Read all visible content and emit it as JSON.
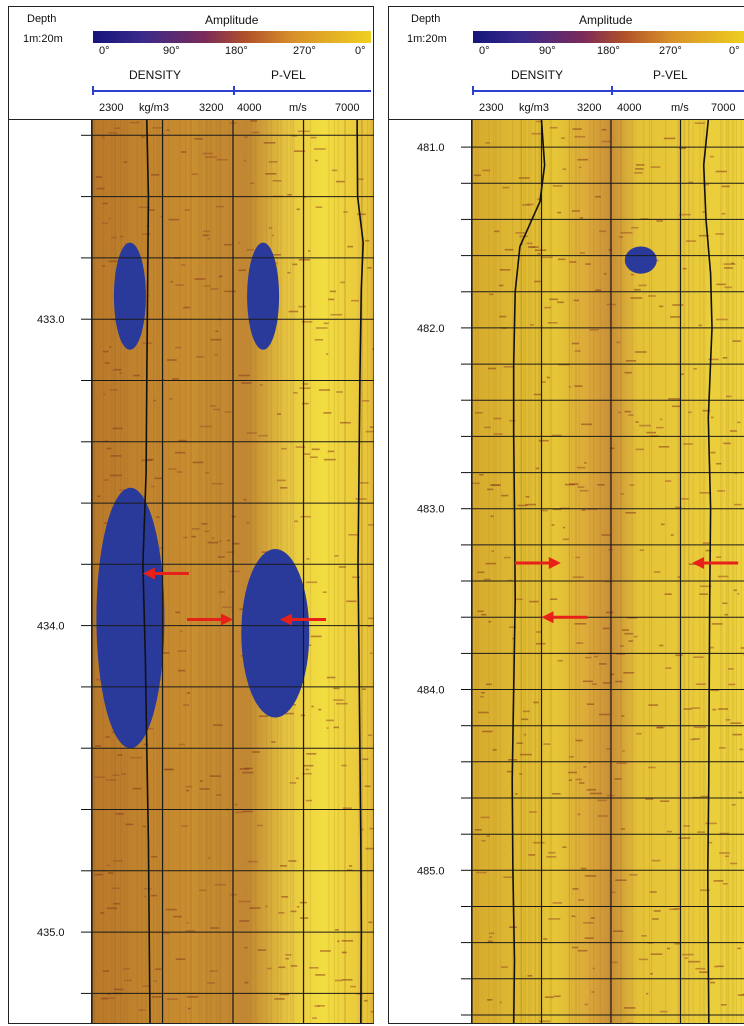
{
  "panels": [
    {
      "id": "left",
      "header": {
        "depth": "Depth",
        "scale": "1m:20m",
        "amplitude": "Amplitude",
        "ramp_ticks": [
          "0°",
          "90°",
          "180°",
          "270°",
          "0°"
        ],
        "curve1": "DENSITY",
        "curve2": "P-VEL",
        "scale_labels": [
          "2300",
          "kg/m3",
          "3200",
          "4000",
          "m/s",
          "7000"
        ]
      },
      "depth_labels": [
        {
          "depth": 433.0,
          "label": "433.0"
        },
        {
          "depth": 434.0,
          "label": "434.0"
        },
        {
          "depth": 435.0,
          "label": "435.0"
        }
      ]
    },
    {
      "id": "right",
      "header": {
        "depth": "Depth",
        "scale": "1m:20m",
        "amplitude": "Amplitude",
        "ramp_ticks": [
          "0°",
          "90°",
          "180°",
          "270°",
          "0°"
        ],
        "curve1": "DENSITY",
        "curve2": "P-VEL",
        "scale_labels": [
          "2300",
          "kg/m3",
          "3200",
          "4000",
          "m/s",
          "7000"
        ]
      },
      "depth_labels": [
        {
          "depth": 481.0,
          "label": "481.0"
        },
        {
          "depth": 482.0,
          "label": "482.0"
        },
        {
          "depth": 483.0,
          "label": "483.0"
        },
        {
          "depth": 484.0,
          "label": "484.0"
        },
        {
          "depth": 485.0,
          "label": "485.0"
        }
      ]
    }
  ],
  "chart_data": [
    {
      "type": "line",
      "x_axis": "depth (m)",
      "depth_range": [
        432.35,
        435.3
      ],
      "gridlines": true,
      "colors": {
        "ramp_low": "#15157a",
        "ramp_high": "#f0d020",
        "breakouts": "#2a3a9a",
        "arrows": "#e8201a",
        "scale": "#2b3fd0"
      },
      "series": [
        {
          "name": "DENSITY",
          "unit": "kg/m3",
          "range": [
            2300,
            3200
          ],
          "depths": [
            432.35,
            432.6,
            432.9,
            433.2,
            433.5,
            433.8,
            434.1,
            434.4,
            434.7,
            435.0,
            435.3
          ],
          "values": [
            2650,
            2660,
            2655,
            2650,
            2645,
            2625,
            2640,
            2650,
            2660,
            2665,
            2670
          ]
        },
        {
          "name": "P-VEL",
          "unit": "m/s",
          "range": [
            4000,
            7000
          ],
          "depths": [
            432.35,
            432.6,
            432.75,
            432.9,
            433.2,
            433.5,
            433.8,
            434.1,
            434.4,
            434.7,
            435.0,
            435.3
          ],
          "values": [
            6640,
            6650,
            6770,
            6730,
            6700,
            6680,
            6660,
            6680,
            6700,
            6720,
            6730,
            6720
          ]
        }
      ],
      "breakouts": [
        {
          "depth_top": 433.55,
          "depth_bottom": 434.4,
          "azimuth_deg": 10
        },
        {
          "depth_top": 433.75,
          "depth_bottom": 434.3,
          "azimuth_deg": 195
        },
        {
          "depth_top": 432.75,
          "depth_bottom": 433.1,
          "azimuth_deg": 30
        },
        {
          "depth_top": 432.75,
          "depth_bottom": 433.1,
          "azimuth_deg": 200
        }
      ],
      "arrows": [
        {
          "depth": 433.83,
          "azimuth_deg": 0,
          "direction": "right"
        },
        {
          "depth": 433.83,
          "azimuth_deg": 65,
          "direction": "left"
        },
        {
          "depth": 433.98,
          "azimuth_deg": 180,
          "direction": "right"
        },
        {
          "depth": 433.98,
          "azimuth_deg": 240,
          "direction": "left"
        }
      ]
    },
    {
      "type": "line",
      "x_axis": "depth (m)",
      "depth_range": [
        480.85,
        485.85
      ],
      "gridlines": true,
      "series": [
        {
          "name": "DENSITY",
          "unit": "kg/m3",
          "range": [
            2300,
            3200
          ],
          "depths": [
            480.85,
            481.1,
            481.3,
            481.55,
            481.8,
            482.2,
            482.6,
            483.0,
            483.5,
            484.0,
            484.5,
            485.0,
            485.5,
            485.85
          ],
          "values": [
            2750,
            2770,
            2740,
            2610,
            2580,
            2570,
            2570,
            2575,
            2580,
            2570,
            2560,
            2565,
            2575,
            2570
          ]
        },
        {
          "name": "P-VEL",
          "unit": "m/s",
          "range": [
            4000,
            7000
          ],
          "depths": [
            480.85,
            481.1,
            481.4,
            481.7,
            482.0,
            482.5,
            483.0,
            483.5,
            484.0,
            484.5,
            485.0,
            485.5,
            485.85
          ],
          "values": [
            6100,
            6000,
            6050,
            6150,
            6180,
            6100,
            6150,
            6130,
            6120,
            6110,
            6090,
            6100,
            6110
          ]
        }
      ],
      "breakouts": [
        {
          "depth_top": 481.55,
          "depth_bottom": 481.7,
          "azimuth_deg": 200
        }
      ],
      "arrows": [
        {
          "depth": 483.3,
          "azimuth_deg": 115,
          "direction": "right"
        },
        {
          "depth": 483.3,
          "azimuth_deg": 285,
          "direction": "left"
        },
        {
          "depth": 483.6,
          "azimuth_deg": 0,
          "direction": "right"
        },
        {
          "depth": 483.6,
          "azimuth_deg": 90,
          "direction": "left"
        }
      ]
    }
  ]
}
